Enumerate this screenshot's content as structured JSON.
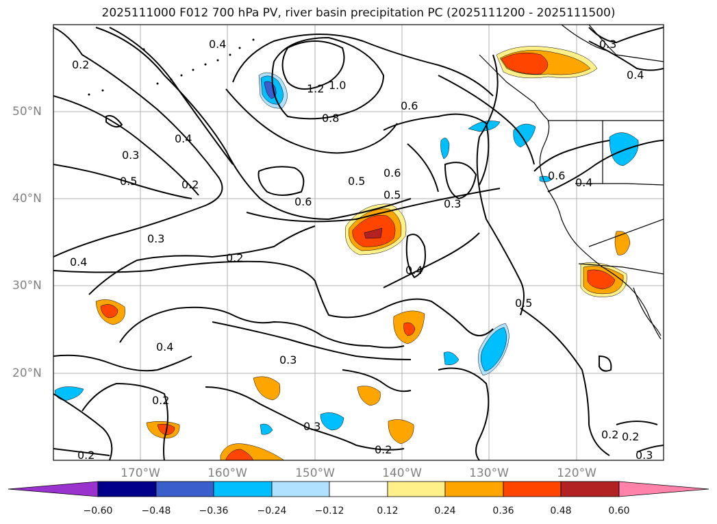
{
  "title": "2025111000 F012 700 hPa PV, river basin precipitation PC (2025111200 - 2025111500)",
  "lat_labels": [
    "50°N",
    "40°N",
    "30°N",
    "20°N"
  ],
  "lon_labels": [
    "170°W",
    "160°W",
    "150°W",
    "140°W",
    "130°W",
    "120°W"
  ],
  "contour_labels": [
    "0.4",
    "0.3",
    "0.2",
    "1.2",
    "1.0",
    "0.8",
    "0.6",
    "0.4",
    "0.4",
    "0.3",
    "0.5",
    "0.2",
    "0.6",
    "0.5",
    "0.6",
    "0.5",
    "0.3",
    "0.6",
    "0.4",
    "0.3",
    "0.2",
    "0.4",
    "0.4",
    "0.5",
    "0.4",
    "0.3",
    "0.2",
    "0.3",
    "0.2",
    "0.2",
    "0.2",
    "0.2",
    "0.3"
  ],
  "colorbar": {
    "ticks": [
      "−0.60",
      "−0.48",
      "−0.36",
      "−0.24",
      "−0.12",
      "0.12",
      "0.24",
      "0.36",
      "0.48",
      "0.60"
    ],
    "colors": [
      "#9a32cd",
      "#00008b",
      "#3a5fcd",
      "#00bfff",
      "#b0e2ff",
      "#ffffff",
      "#fff08a",
      "#ffa500",
      "#ff4500",
      "#b22222",
      "#ff82ab",
      "#ff82ab"
    ]
  },
  "colors": {
    "pos1": "#fff08a",
    "pos2": "#ffa500",
    "pos3": "#ff4500",
    "pos4": "#b22222",
    "neg1": "#b0e2ff",
    "neg2": "#00bfff",
    "neg3": "#3a5fcd",
    "neg4": "#00008b",
    "neg5": "#9a32cd"
  }
}
